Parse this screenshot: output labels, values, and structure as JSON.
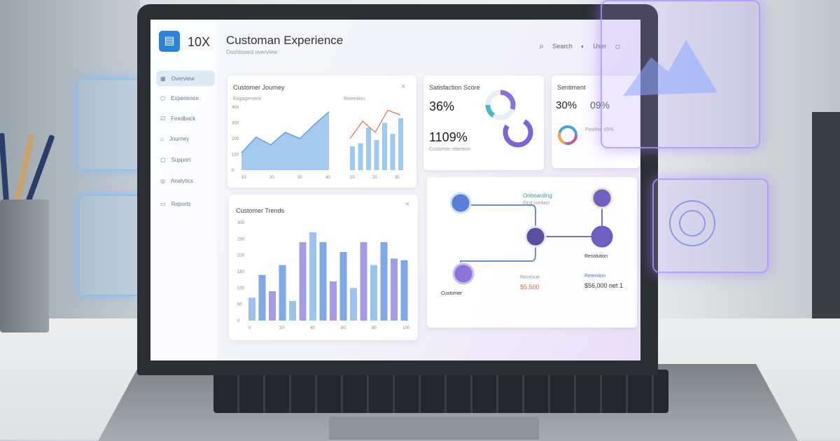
{
  "app": {
    "brand": "10X",
    "title": "Customan Experience",
    "subtitle": "Dashboard overview"
  },
  "header": {
    "search_label": "Search",
    "user_label": "User"
  },
  "sidebar": {
    "items": [
      {
        "label": "Overview",
        "icon": "dashboard-icon"
      },
      {
        "label": "Experience",
        "icon": "shield-icon"
      },
      {
        "label": "Feedback",
        "icon": "check-icon"
      },
      {
        "label": "Journey",
        "icon": "door-icon"
      },
      {
        "label": "Support",
        "icon": "box-icon"
      },
      {
        "label": "Analytics",
        "icon": "compass-icon"
      },
      {
        "label": "Reports",
        "icon": "folder-icon"
      }
    ]
  },
  "cards": {
    "trend": {
      "title": "Customer Journey",
      "left_label": "Engagement",
      "right_label": "Retention",
      "y_ticks": [
        "0",
        "100",
        "200",
        "300",
        "400"
      ],
      "x_ticks": [
        "10",
        "20",
        "30",
        "40"
      ],
      "x_ticks_right": [
        "10",
        "20",
        "30"
      ]
    },
    "donut1": {
      "title": "Satisfaction Score",
      "value1": "36%",
      "value2": "1109%",
      "note": "Customer retention"
    },
    "donut2": {
      "title": "Sentiment",
      "value1": "30%",
      "value2": "09%",
      "legend": "Positive 65%"
    },
    "bars": {
      "title": "Customer Trends",
      "y_ticks": [
        "0",
        "50",
        "100",
        "150",
        "200",
        "250",
        "300"
      ],
      "x_ticks": [
        "0",
        "20",
        "40",
        "60",
        "80",
        "100"
      ]
    },
    "journey": {
      "node_label_top": "Onboarding",
      "node_sub_top": "First contact",
      "left_label": "Customer",
      "right_label": "Resolution",
      "mid_label": "Revenue",
      "mid_value": "$5,500",
      "right_value_label": "Retention",
      "right_value": "$56,000 net 1"
    }
  },
  "chart_data": [
    {
      "type": "area",
      "x": [
        10,
        15,
        20,
        25,
        30,
        35,
        40
      ],
      "values": [
        110,
        210,
        160,
        240,
        200,
        290,
        370
      ],
      "ylim": [
        0,
        400
      ]
    },
    {
      "type": "bar",
      "values": [
        150,
        170,
        270,
        190,
        300,
        230,
        330
      ],
      "line": [
        200,
        310,
        240,
        380,
        350
      ],
      "ylim": [
        0,
        400
      ]
    },
    {
      "type": "bar",
      "values": [
        70,
        140,
        90,
        170,
        60,
        240,
        270,
        240,
        120,
        210,
        100,
        240,
        170,
        240,
        190,
        185
      ],
      "ylim": [
        0,
        300
      ]
    }
  ],
  "colors": {
    "accent": "#2a82da",
    "bar_blue": "#7fb4e6",
    "bar_purple": "#9a8fe0",
    "line_red": "#e07a5f",
    "node": "#6a5acd"
  }
}
